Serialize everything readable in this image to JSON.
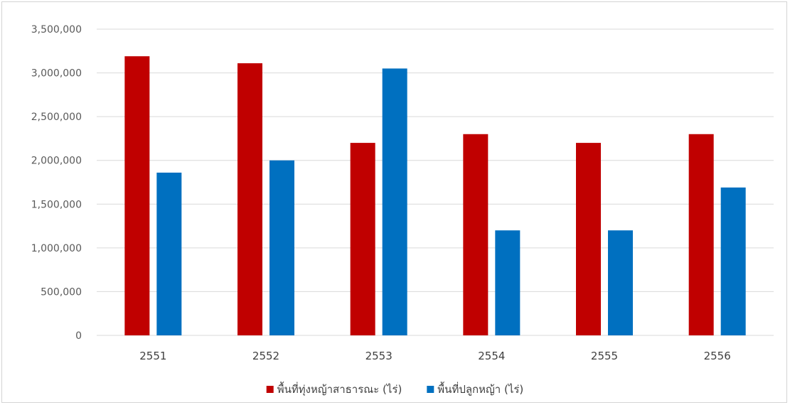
{
  "chart_data": {
    "type": "bar",
    "categories": [
      "2551",
      "2552",
      "2553",
      "2554",
      "2555",
      "2556"
    ],
    "series": [
      {
        "name": "พื้นที่ทุ่งหญ้าสาธารณะ (ไร่)",
        "color": "#c00000",
        "values": [
          3190000,
          3110000,
          2200000,
          2300000,
          2200000,
          2300000
        ]
      },
      {
        "name": "พื้นที่ปลูกหญ้า (ไร่)",
        "color": "#0070c0",
        "values": [
          1860000,
          2000000,
          3050000,
          1200000,
          1200000,
          1690000
        ]
      }
    ],
    "ylim": [
      0,
      3500000
    ],
    "yticks": [
      "0",
      "500,000",
      "1,000,000",
      "1,500,000",
      "2,000,000",
      "2,500,000",
      "3,000,000",
      "3,500,000"
    ],
    "grid": true,
    "legend": "bottom",
    "gridColor": "#d9d9d9"
  }
}
